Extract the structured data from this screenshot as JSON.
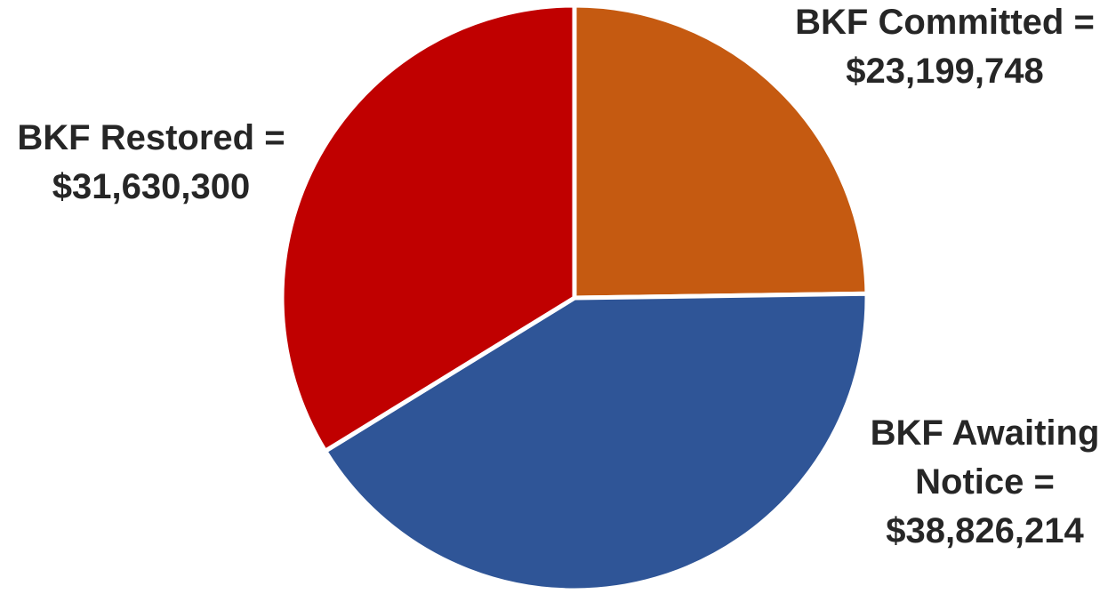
{
  "chart_data": {
    "type": "pie",
    "title": "",
    "slices": [
      {
        "key": "committed",
        "label": "BKF Committed =",
        "value_text": "$23,199,748",
        "value": 23199748,
        "color": "#C55A11"
      },
      {
        "key": "awaiting",
        "label": "BKF Awaiting Notice =",
        "label_line1": "BKF Awaiting",
        "label_line2": "Notice =",
        "value_text": "$38,826,214",
        "value": 38826214,
        "color": "#2F5597"
      },
      {
        "key": "restored",
        "label": "BKF Restored =",
        "value_text": "$31,630,300",
        "value": 31630300,
        "color": "#C00000"
      }
    ],
    "start_angle_deg": 0,
    "direction": "clockwise",
    "legend": "none",
    "data_labels": "outside"
  }
}
